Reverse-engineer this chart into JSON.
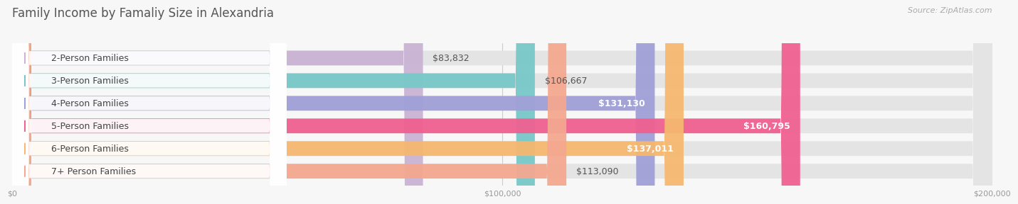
{
  "title": "Family Income by Famaliy Size in Alexandria",
  "source": "Source: ZipAtlas.com",
  "categories": [
    "2-Person Families",
    "3-Person Families",
    "4-Person Families",
    "5-Person Families",
    "6-Person Families",
    "7+ Person Families"
  ],
  "values": [
    83832,
    106667,
    131130,
    160795,
    137011,
    113090
  ],
  "bar_colors": [
    "#c9b4d4",
    "#78c8c8",
    "#a0a0d8",
    "#f06090",
    "#f5b870",
    "#f4a890"
  ],
  "value_labels": [
    "$83,832",
    "$106,667",
    "$131,130",
    "$160,795",
    "$137,011",
    "$113,090"
  ],
  "value_inside": [
    false,
    false,
    true,
    true,
    true,
    false
  ],
  "xmax": 200000,
  "xticks": [
    0,
    100000,
    200000
  ],
  "xtick_labels": [
    "$0",
    "$100,000",
    "$200,000"
  ],
  "background_color": "#f7f7f7",
  "bar_bg_color": "#e4e4e4",
  "title_fontsize": 12,
  "source_fontsize": 8,
  "label_fontsize": 9,
  "value_fontsize": 9,
  "bar_height": 0.65,
  "fig_width": 14.06,
  "fig_height": 3.05
}
